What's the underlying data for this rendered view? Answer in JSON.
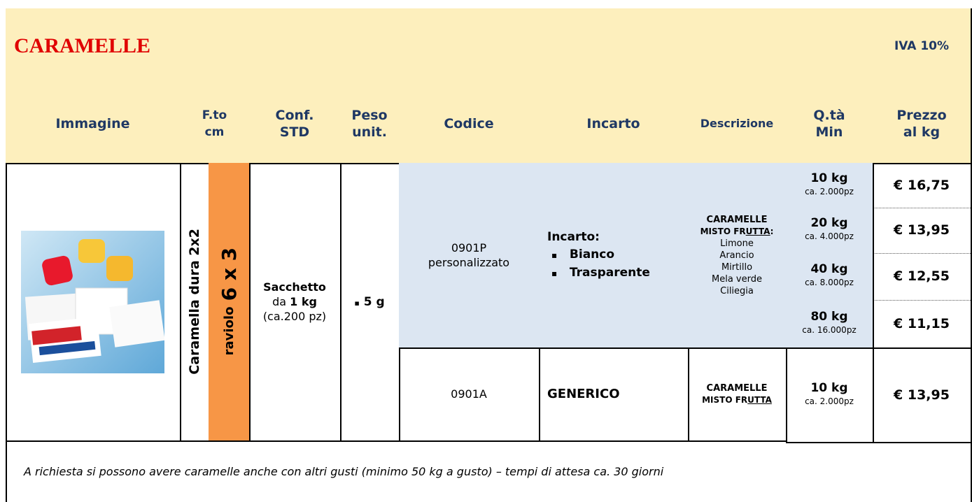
{
  "header": {
    "title": "CARAMELLE",
    "vat": "IVA 10%"
  },
  "columns": [
    [
      "Immagine"
    ],
    [
      "F.to",
      "cm"
    ],
    [
      "Conf.",
      "STD"
    ],
    [
      "Peso",
      "unit."
    ],
    [
      "Codice"
    ],
    [
      "Incarto"
    ],
    [
      "Descrizione"
    ],
    [
      "Q.tà",
      "Min"
    ],
    [
      "Prezzo",
      "al kg"
    ]
  ],
  "format": {
    "shape": "Caramella dura 2x2",
    "size_prefix": "raviolo",
    "size": "6 x 3"
  },
  "conf_std": {
    "package": "Sacchetto",
    "prefix": "da",
    "amount": "1 kg",
    "note": "(ca.200 pz)"
  },
  "unit_weight": "5 g",
  "products": [
    {
      "code": "0901P",
      "code_note": "personalizzato",
      "wrapping_label": "Incarto:",
      "wrapping": [
        "Bianco",
        "Trasparente"
      ],
      "description": {
        "title": "CARAMELLE",
        "name_start": "MISTO FR",
        "name_underlined": "UTTA",
        "colon": ":",
        "flavors": [
          "Limone",
          "Arancio",
          "Mirtillo",
          "Mela verde",
          "Ciliegia"
        ]
      },
      "tiers": [
        {
          "qty": "10 kg",
          "pieces": "ca. 2.000pz",
          "price": "€ 16,75"
        },
        {
          "qty": "20 kg",
          "pieces": "ca. 4.000pz",
          "price": "€ 13,95"
        },
        {
          "qty": "40 kg",
          "pieces": "ca. 8.000pz",
          "price": "€ 12,55"
        },
        {
          "qty": "80 kg",
          "pieces": "ca. 16.000pz",
          "price": "€ 11,15"
        }
      ]
    },
    {
      "code": "0901A",
      "wrapping_label": "GENERICO",
      "description": {
        "title": "CARAMELLE",
        "name_start": "MISTO FR",
        "name_underlined": "UTTA"
      },
      "tiers": [
        {
          "qty": "10 kg",
          "pieces": "ca. 2.000pz",
          "price": "€ 13,95"
        }
      ]
    }
  ],
  "footer": "A richiesta si possono avere caramelle anche con altri gusti (minimo 50 kg a gusto) – tempi di attesa ca. 30 giorni"
}
